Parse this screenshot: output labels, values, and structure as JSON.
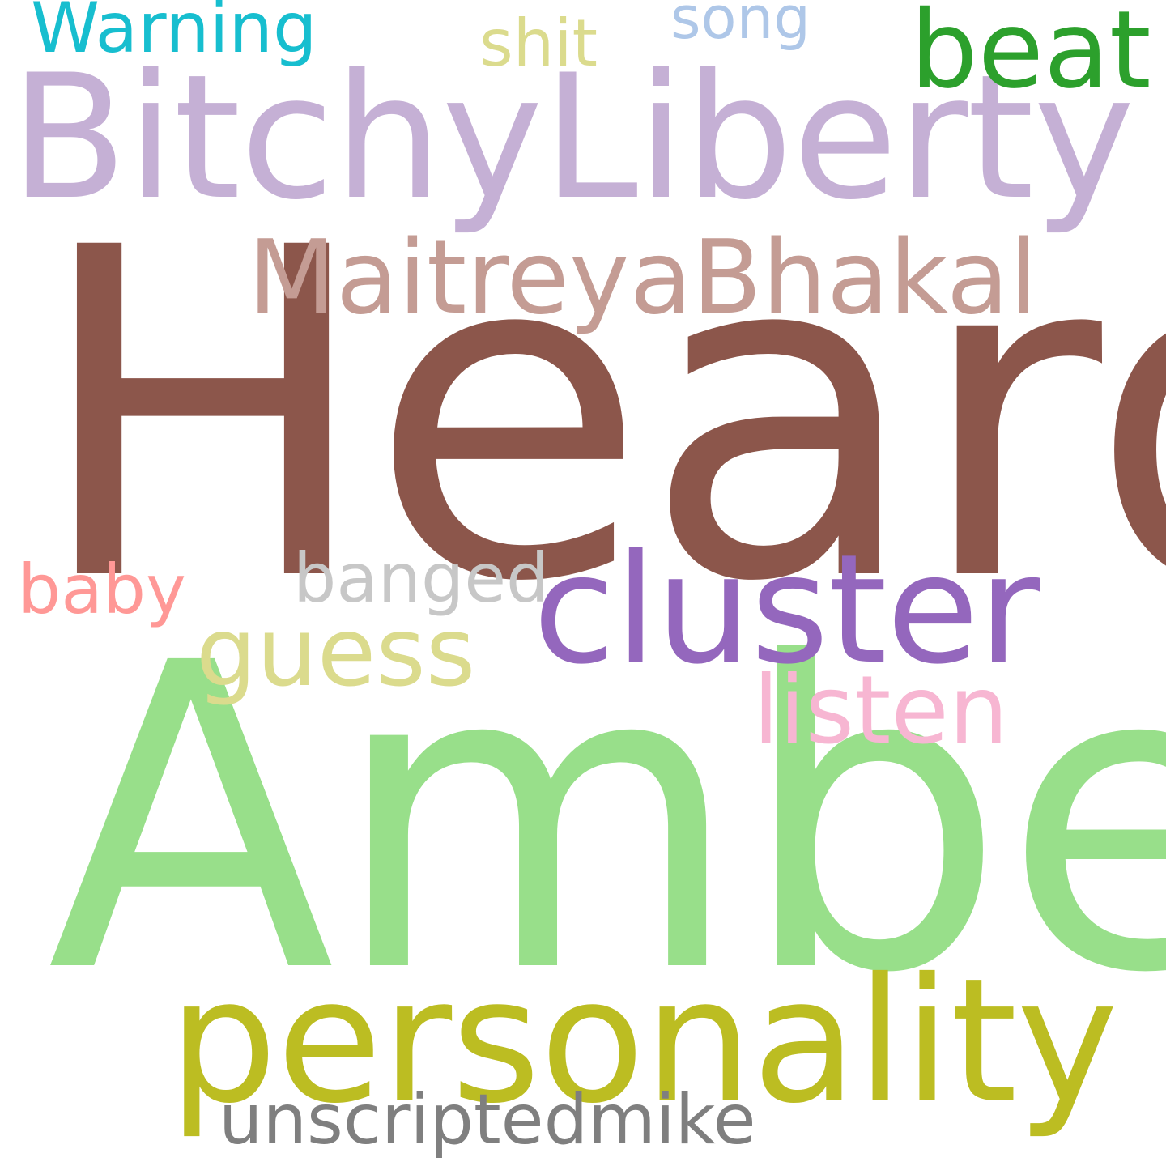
{
  "word_cloud": {
    "background": "#ffffff",
    "words": {
      "heard": {
        "text": "Heard",
        "color": "#8c564b"
      },
      "amber": {
        "text": "Amber",
        "color": "#98df8a"
      },
      "bitchy": {
        "text": "BitchyLiberty",
        "color": "#c5b0d5"
      },
      "personality": {
        "text": "personality",
        "color": "#bcbd22"
      },
      "cluster": {
        "text": "cluster",
        "color": "#9467bd"
      },
      "maitreya": {
        "text": "MaitreyaBhakal",
        "color": "#c49c94"
      },
      "beat": {
        "text": "beat",
        "color": "#2ca02c"
      },
      "guess": {
        "text": "guess",
        "color": "#dbdb8d"
      },
      "listen": {
        "text": "listen",
        "color": "#f7b6d2"
      },
      "unscripted": {
        "text": "unscriptedmike",
        "color": "#7f7f7f"
      },
      "banged": {
        "text": "banged",
        "color": "#c7c7c7"
      },
      "baby": {
        "text": "baby",
        "color": "#ff9896"
      },
      "warning": {
        "text": "Warning",
        "color": "#17becf"
      },
      "shit": {
        "text": "shit",
        "color": "#dbdb8d"
      },
      "song": {
        "text": "song",
        "color": "#aec7e8"
      }
    }
  }
}
